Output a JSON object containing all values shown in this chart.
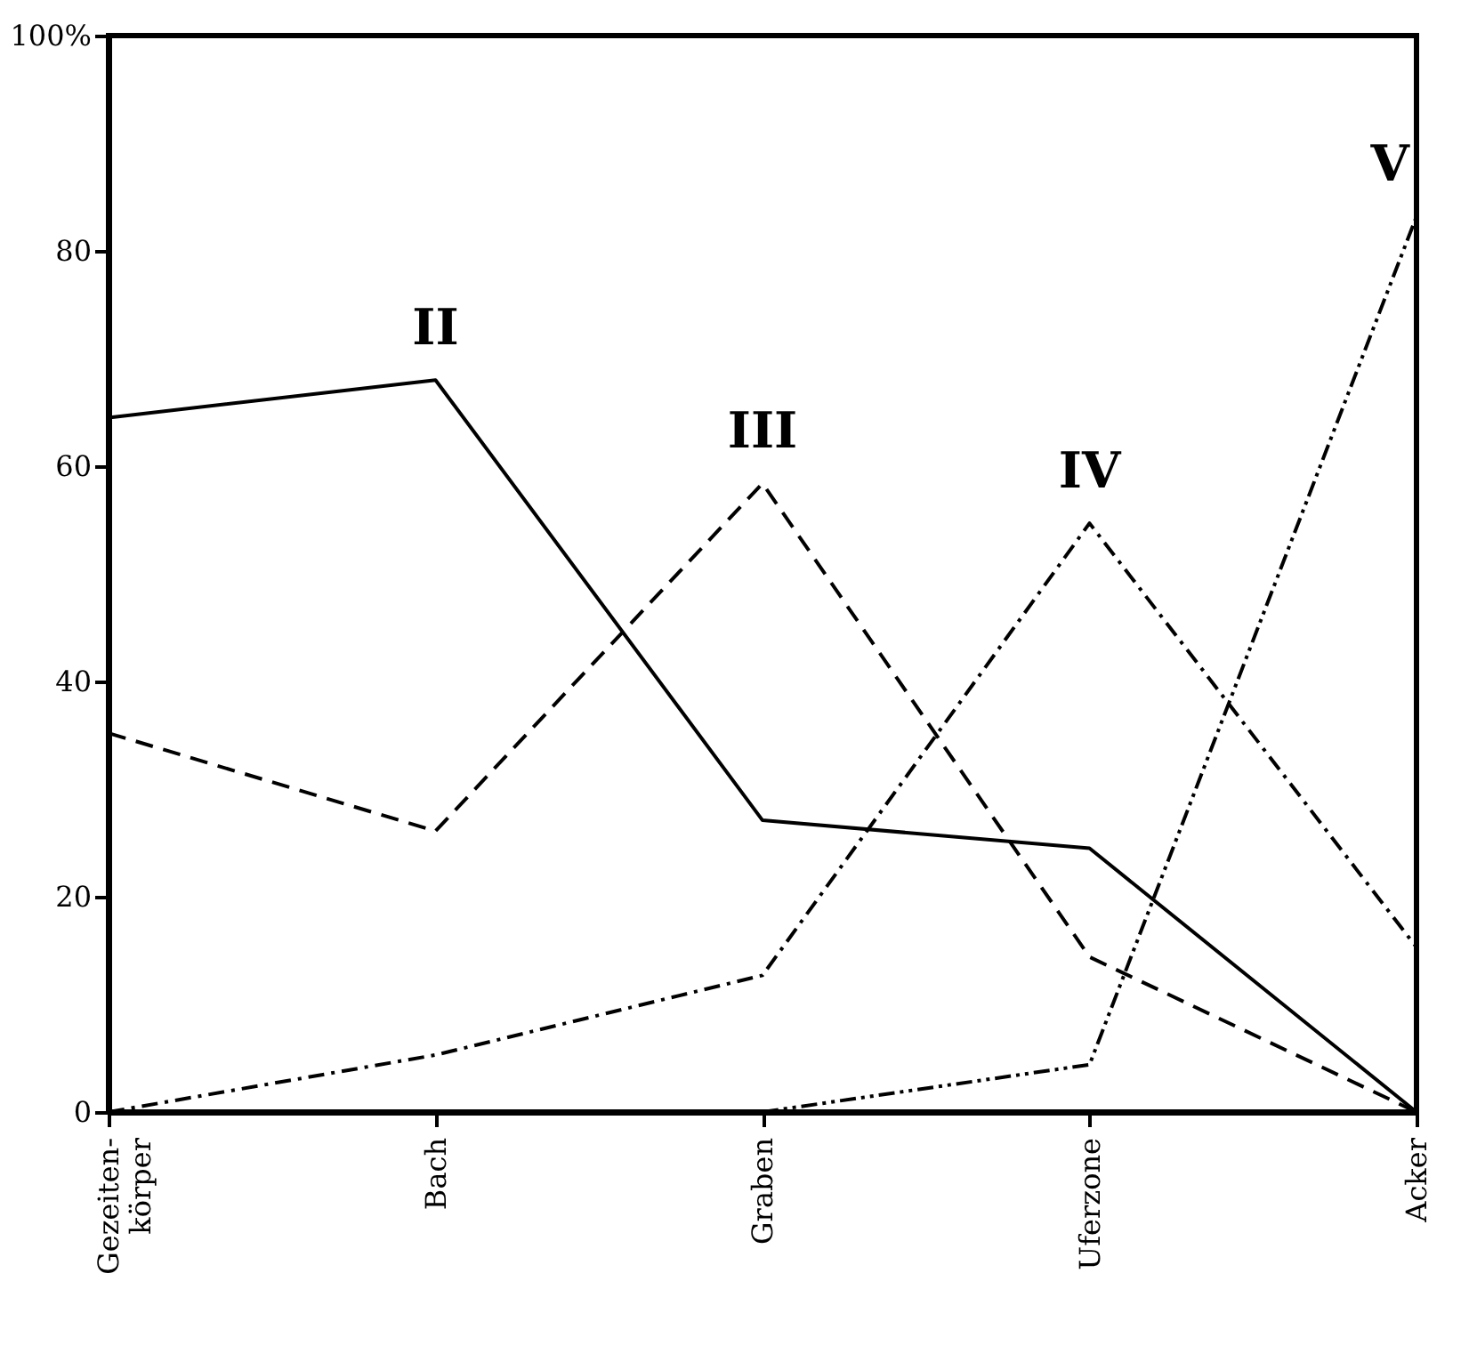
{
  "chart_data": {
    "type": "line",
    "categories": [
      "Gezeiten-\nkörper",
      "Bach",
      "Graben",
      "Uferzone",
      "Acker"
    ],
    "series": [
      {
        "name": "II",
        "color": "#000000",
        "line_style": "solid",
        "values": [
          64.5,
          68,
          27.1,
          24.5,
          0
        ]
      },
      {
        "name": "III",
        "color": "#000000",
        "line_style": "dashed",
        "values": [
          35.2,
          26.1,
          58.4,
          14.4,
          0
        ]
      },
      {
        "name": "IV",
        "color": "#000000",
        "line_style": "dashdot",
        "values": [
          0,
          5.3,
          12.7,
          54.7,
          15.3
        ]
      },
      {
        "name": "V",
        "color": "#000000",
        "line_style": "dashdotdot",
        "values": [
          null,
          null,
          0,
          4.4,
          83.2
        ]
      }
    ],
    "ylim": [
      0,
      100
    ],
    "yticks": [
      0,
      20,
      40,
      60,
      80,
      {
        "value": 100,
        "label": "100%"
      }
    ],
    "grid": false,
    "marker": "none"
  }
}
